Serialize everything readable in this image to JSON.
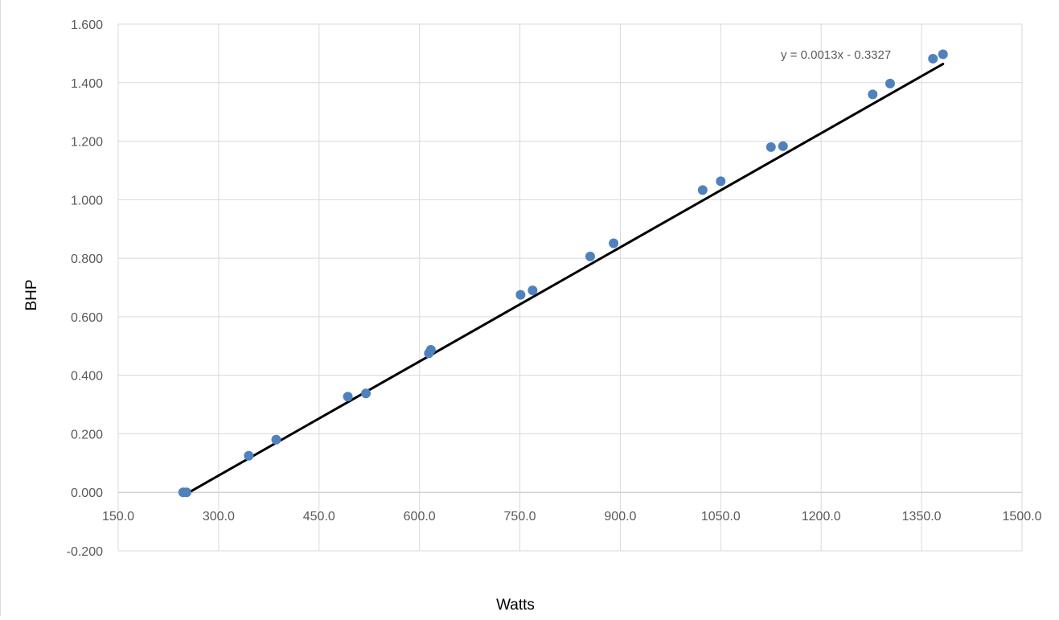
{
  "chart_data": {
    "type": "scatter",
    "title": "",
    "xlabel": "Watts",
    "ylabel": "BHP",
    "xlim": [
      150,
      1500
    ],
    "ylim": [
      -0.2,
      1.6
    ],
    "x_ticks": [
      "150.0",
      "300.0",
      "450.0",
      "600.0",
      "750.0",
      "900.0",
      "1050.0",
      "1200.0",
      "1350.0",
      "1500.0"
    ],
    "y_ticks": [
      "-0.200",
      "0.000",
      "0.200",
      "0.400",
      "0.600",
      "0.800",
      "1.000",
      "1.200",
      "1.400",
      "1.600"
    ],
    "grid": true,
    "legend": "none",
    "series": [
      {
        "color": "#4f81bd",
        "points": [
          {
            "x": 247,
            "y": 0.0
          },
          {
            "x": 252,
            "y": 0.0
          },
          {
            "x": 345,
            "y": 0.125
          },
          {
            "x": 386,
            "y": 0.18
          },
          {
            "x": 493,
            "y": 0.327
          },
          {
            "x": 520,
            "y": 0.338
          },
          {
            "x": 614,
            "y": 0.475
          },
          {
            "x": 617,
            "y": 0.487
          },
          {
            "x": 751,
            "y": 0.675
          },
          {
            "x": 769,
            "y": 0.69
          },
          {
            "x": 855,
            "y": 0.806
          },
          {
            "x": 890,
            "y": 0.851
          },
          {
            "x": 1023,
            "y": 1.033
          },
          {
            "x": 1050,
            "y": 1.063
          },
          {
            "x": 1125,
            "y": 1.18
          },
          {
            "x": 1143,
            "y": 1.183
          },
          {
            "x": 1277,
            "y": 1.36
          },
          {
            "x": 1303,
            "y": 1.397
          },
          {
            "x": 1367,
            "y": 1.482
          },
          {
            "x": 1382,
            "y": 1.497
          }
        ]
      }
    ],
    "trendline": {
      "type": "linear",
      "slope": 0.0013,
      "intercept": -0.3327,
      "x_start": 252,
      "x_end": 1382,
      "color": "#000000",
      "label": "y = 0.0013x - 0.3327"
    },
    "colors": {
      "marker": "#4f81bd",
      "grid": "#d9d9d9",
      "trendline": "#000000"
    }
  }
}
